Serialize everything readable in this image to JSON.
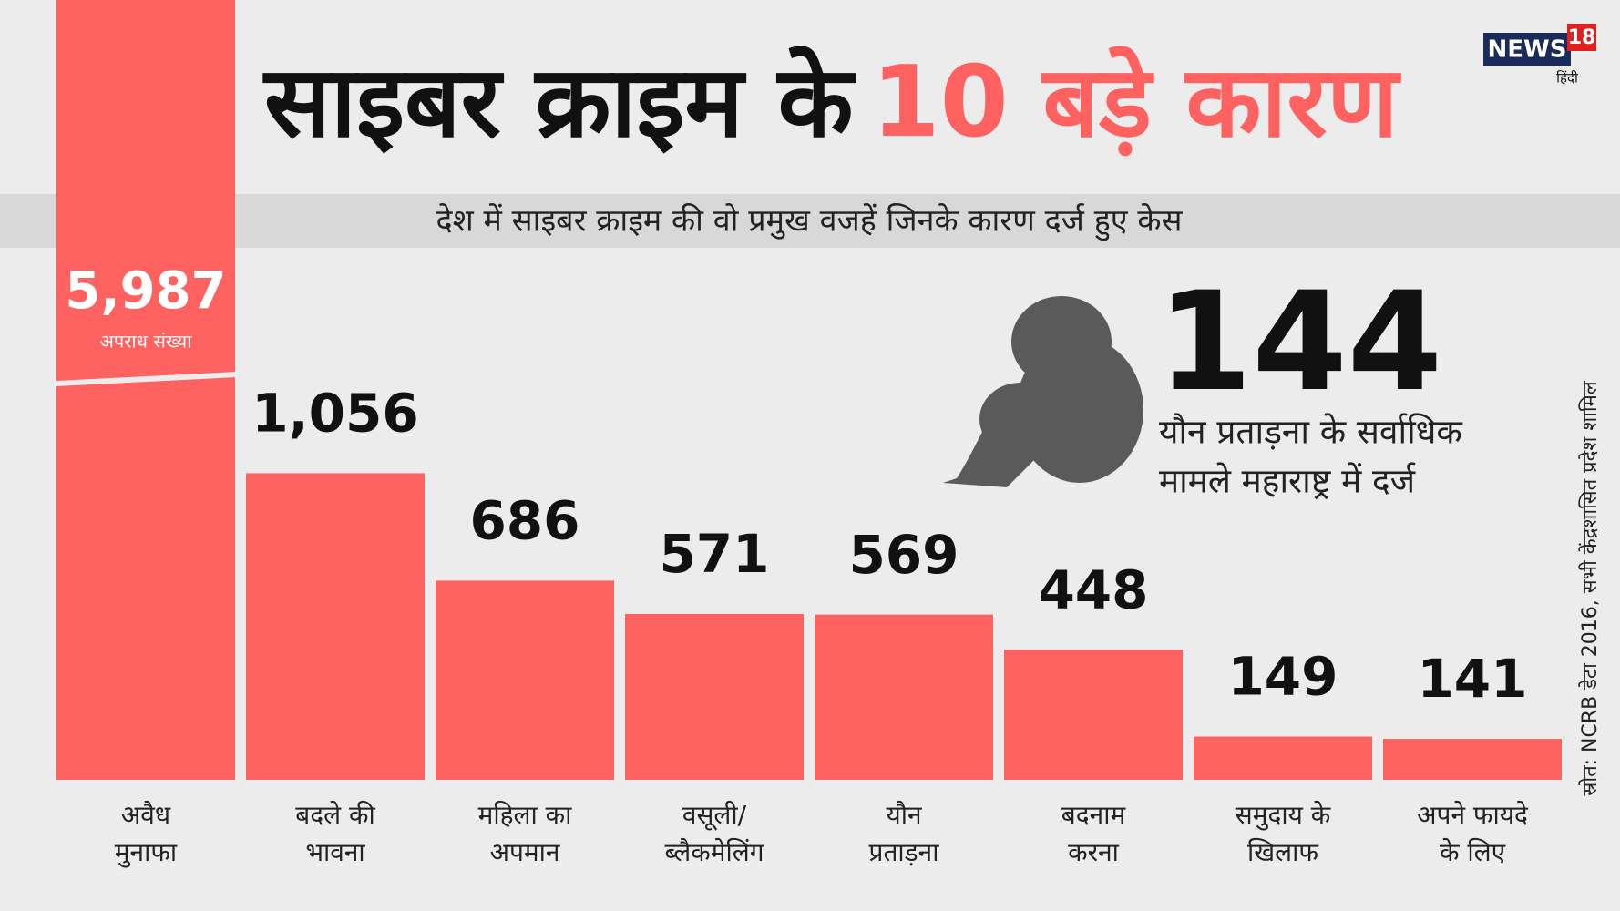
{
  "chart_data": {
    "type": "bar",
    "title": [
      "साइबर क्राइम के",
      "10 बड़े कारण"
    ],
    "subtitle": "देश में साइबर क्राइम की वो प्रमुख वजहें जिनके कारण दर्ज हुए केस",
    "categories": [
      [
        "अवैध",
        "मुनाफा"
      ],
      [
        "बदले की",
        "भावना"
      ],
      [
        "महिला का",
        "अपमान"
      ],
      [
        "वसूली/",
        "ब्लैकमेलिंग"
      ],
      [
        "यौन",
        "प्रताड़ना"
      ],
      [
        "बदनाम",
        "करना"
      ],
      [
        "समुदाय के",
        "खिलाफ"
      ],
      [
        "अपने फायदे",
        "के लिए"
      ]
    ],
    "values": [
      5987,
      1056,
      686,
      571,
      569,
      448,
      149,
      141
    ],
    "value_labels": [
      "5,987",
      "1,056",
      "686",
      "571",
      "569",
      "448",
      "149",
      "141"
    ],
    "value_note": "अपराध संख्या",
    "color": "#fd6260",
    "callout": {
      "number": "144",
      "text": [
        "यौन प्रताड़ना के सर्वाधिक",
        "मामले महाराष्ट्र में दर्ज"
      ]
    },
    "source": "स्रोत: NCRB डेटा 2016, सभी केंद्रशासित प्रदेश शामिल",
    "logo": {
      "name": "NEWS",
      "number": "18",
      "sub": "हिंदी"
    }
  }
}
